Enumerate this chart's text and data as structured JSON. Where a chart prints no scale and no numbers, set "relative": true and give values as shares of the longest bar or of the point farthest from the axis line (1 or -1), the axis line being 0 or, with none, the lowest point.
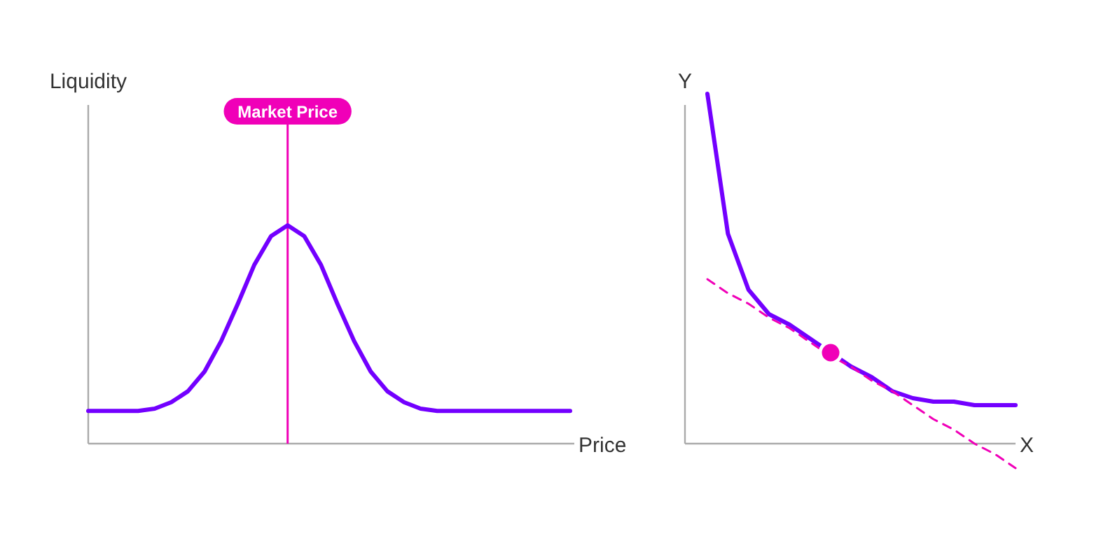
{
  "chart_data": [
    {
      "type": "line",
      "xlabel": "Price",
      "ylabel": "Liquidity",
      "relative": true,
      "categories": [
        null,
        null,
        null,
        null,
        null,
        null,
        null,
        null,
        null,
        null,
        null,
        null,
        null,
        null,
        null,
        null,
        null,
        null,
        null,
        null,
        null,
        null,
        null,
        null,
        null,
        null,
        null,
        null,
        null,
        null
      ],
      "series": [
        {
          "color": "#7300ff",
          "values": [
            0.15,
            0.15,
            0.15,
            0.15,
            0.16,
            0.19,
            0.24,
            0.33,
            0.47,
            0.64,
            0.82,
            0.95,
            1,
            0.95,
            0.82,
            0.64,
            0.47,
            0.33,
            0.24,
            0.19,
            0.16,
            0.15,
            0.15,
            0.15,
            0.15,
            0.15,
            0.15,
            0.15,
            0.15,
            0.15
          ]
        }
      ],
      "annotations": [
        "Market Price"
      ]
    },
    {
      "type": "line",
      "xlabel": "X",
      "ylabel": "Y",
      "relative": true,
      "categories": [
        null,
        null,
        null,
        null,
        null,
        null,
        null,
        null,
        null,
        null,
        null,
        null,
        null,
        null,
        null,
        null
      ],
      "series": [
        {
          "color": "#7300ff",
          "values": [
            1,
            0.6,
            0.44,
            0.37,
            0.34,
            0.3,
            0.26,
            0.22,
            0.19,
            0.15,
            0.13,
            0.12,
            0.12,
            0.11,
            0.11,
            0.11
          ]
        },
        {
          "color": "#f000b8",
          "line_style": "dashed",
          "values": [
            0.47,
            0.43,
            0.4,
            0.36,
            0.33,
            0.29,
            0.25,
            0.22,
            0.18,
            0.15,
            0.11,
            0.07,
            0.04,
            0,
            -0.03,
            -0.07
          ]
        },
        {
          "marker": "circle",
          "color": "#f000b8",
          "values": [
            null,
            null,
            null,
            null,
            null,
            null,
            0.26,
            null,
            null,
            null,
            null,
            null,
            null,
            null,
            null,
            null
          ]
        }
      ]
    }
  ]
}
